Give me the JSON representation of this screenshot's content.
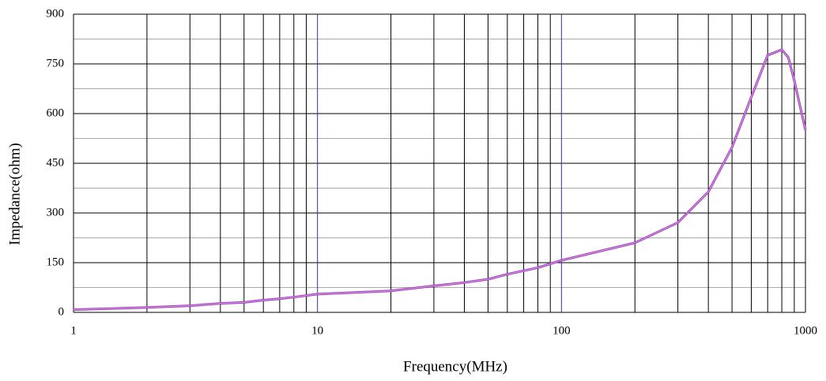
{
  "chart_data": {
    "type": "line",
    "xlabel": "Frequency(MHz)",
    "ylabel": "Impedance(ohm)",
    "xscale": "log",
    "x": [
      1,
      2,
      3,
      4,
      5,
      6,
      7,
      8,
      10,
      20,
      30,
      40,
      50,
      60,
      80,
      100,
      200,
      300,
      400,
      500,
      600,
      700,
      800,
      850,
      900,
      1000
    ],
    "series": [
      {
        "color": "#8a3fc8",
        "values": [
          8,
          15,
          20,
          27,
          30,
          37,
          41,
          46,
          55,
          65,
          80,
          90,
          100,
          115,
          135,
          157,
          210,
          271,
          364,
          498,
          650,
          776,
          793,
          770,
          700,
          550
        ]
      }
    ],
    "xlim": [
      1,
      1000
    ],
    "xticks": [
      1,
      10,
      100,
      1000
    ],
    "xminor": [
      2,
      3,
      4,
      5,
      6,
      7,
      8,
      9,
      20,
      30,
      40,
      50,
      60,
      70,
      80,
      90,
      200,
      300,
      400,
      500,
      600,
      700,
      800,
      900
    ],
    "ylim": [
      0,
      900
    ],
    "yticks": [
      0,
      150,
      300,
      450,
      600,
      750,
      900
    ],
    "yminor": [
      75,
      225,
      375,
      525,
      675,
      825
    ],
    "grid": true
  }
}
